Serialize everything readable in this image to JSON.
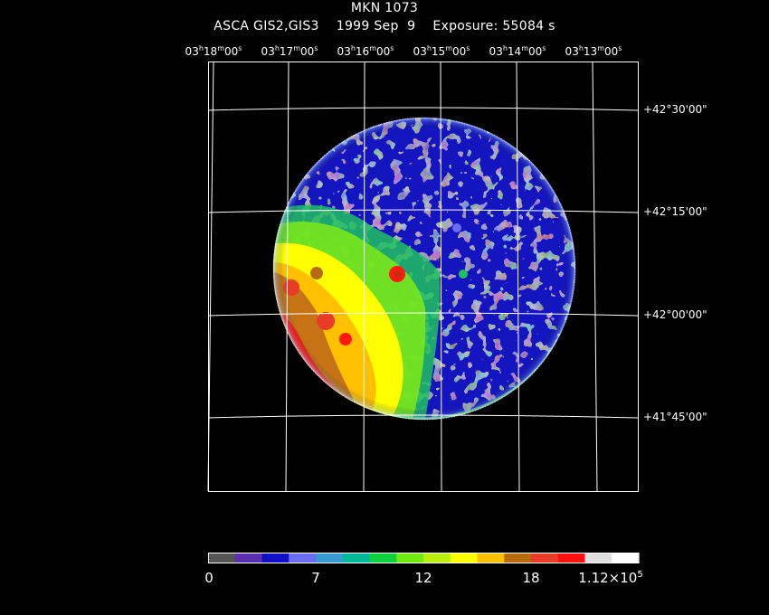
{
  "title": {
    "object": "MKN 1073",
    "instrument": "ASCA GIS2,GIS3",
    "date": "1999 Sep  9",
    "exposure": "Exposure: 55084 s"
  },
  "axes": {
    "ra_ticks": [
      {
        "h": "03",
        "m": "18",
        "s": "00"
      },
      {
        "h": "03",
        "m": "17",
        "s": "00"
      },
      {
        "h": "03",
        "m": "16",
        "s": "00"
      },
      {
        "h": "03",
        "m": "15",
        "s": "00"
      },
      {
        "h": "03",
        "m": "14",
        "s": "00"
      },
      {
        "h": "03",
        "m": "13",
        "s": "00"
      }
    ],
    "dec_ticks": [
      "+42°30'00\"",
      "+42°15'00\"",
      "+42°00'00\"",
      "+41°45'00\""
    ]
  },
  "colorbar": {
    "colors": [
      "#555555",
      "#5a2fb0",
      "#1010c8",
      "#6a6cf2",
      "#3a9ad0",
      "#00b89a",
      "#10d040",
      "#70ea10",
      "#b8ee10",
      "#ffff00",
      "#ffc000",
      "#b86a10",
      "#e83c28",
      "#ff1010",
      "#e0e0e0",
      "#ffffff"
    ],
    "labels": [
      {
        "text": "0",
        "exp": ""
      },
      {
        "text": "7",
        "exp": ""
      },
      {
        "text": "12",
        "exp": ""
      },
      {
        "text": "18",
        "exp": ""
      },
      {
        "text": "1.12×10",
        "exp": "5"
      }
    ]
  }
}
